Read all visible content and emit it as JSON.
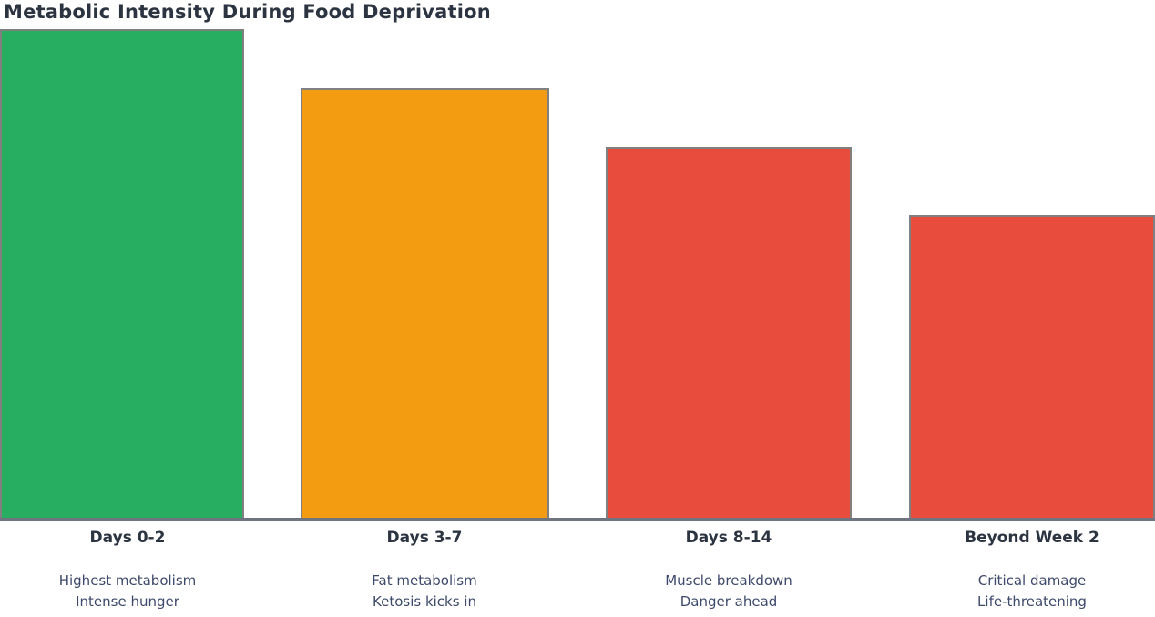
{
  "title": "Metabolic Intensity During Food Deprivation",
  "colors": {
    "bar_green": "#27ae60",
    "bar_orange": "#f39c12",
    "bar_red": "#e74c3c",
    "bar_border": "#808080",
    "baseline": "#6e7480",
    "title_text": "#2b3440",
    "label_text": "#2b3440",
    "note_text": "#3e4a6b",
    "background": "#ffffff"
  },
  "chart_data": {
    "type": "bar",
    "title": "Metabolic Intensity During Food Deprivation",
    "xlabel": "",
    "ylabel": "",
    "ylim": [
      0,
      100
    ],
    "grid": false,
    "legend": false,
    "categories": [
      "Days 0-2",
      "Days 3-7",
      "Days 8-14",
      "Beyond Week 2"
    ],
    "values": [
      100,
      88,
      76,
      62
    ],
    "bar_colors": [
      "#27ae60",
      "#f39c12",
      "#e74c3c",
      "#e74c3c"
    ],
    "annotations": [
      "Highest metabolism / Intense hunger",
      "Fat metabolism / Ketosis kicks in",
      "Muscle breakdown / Danger ahead",
      "Critical damage / Life-threatening"
    ]
  },
  "bars": [
    {
      "label": "Days 0-2",
      "value": 100,
      "color": "#27ae60",
      "note_line1": "Highest metabolism",
      "note_line2": "Intense hunger"
    },
    {
      "label": "Days 3-7",
      "value": 88,
      "color": "#f39c12",
      "note_line1": "Fat metabolism",
      "note_line2": "Ketosis kicks in"
    },
    {
      "label": "Days 8-14",
      "value": 76,
      "color": "#e74c3c",
      "note_line1": "Muscle breakdown",
      "note_line2": "Danger ahead"
    },
    {
      "label": "Beyond Week 2",
      "value": 62,
      "color": "#e74c3c",
      "note_line1": "Critical damage",
      "note_line2": "Life-threatening"
    }
  ]
}
